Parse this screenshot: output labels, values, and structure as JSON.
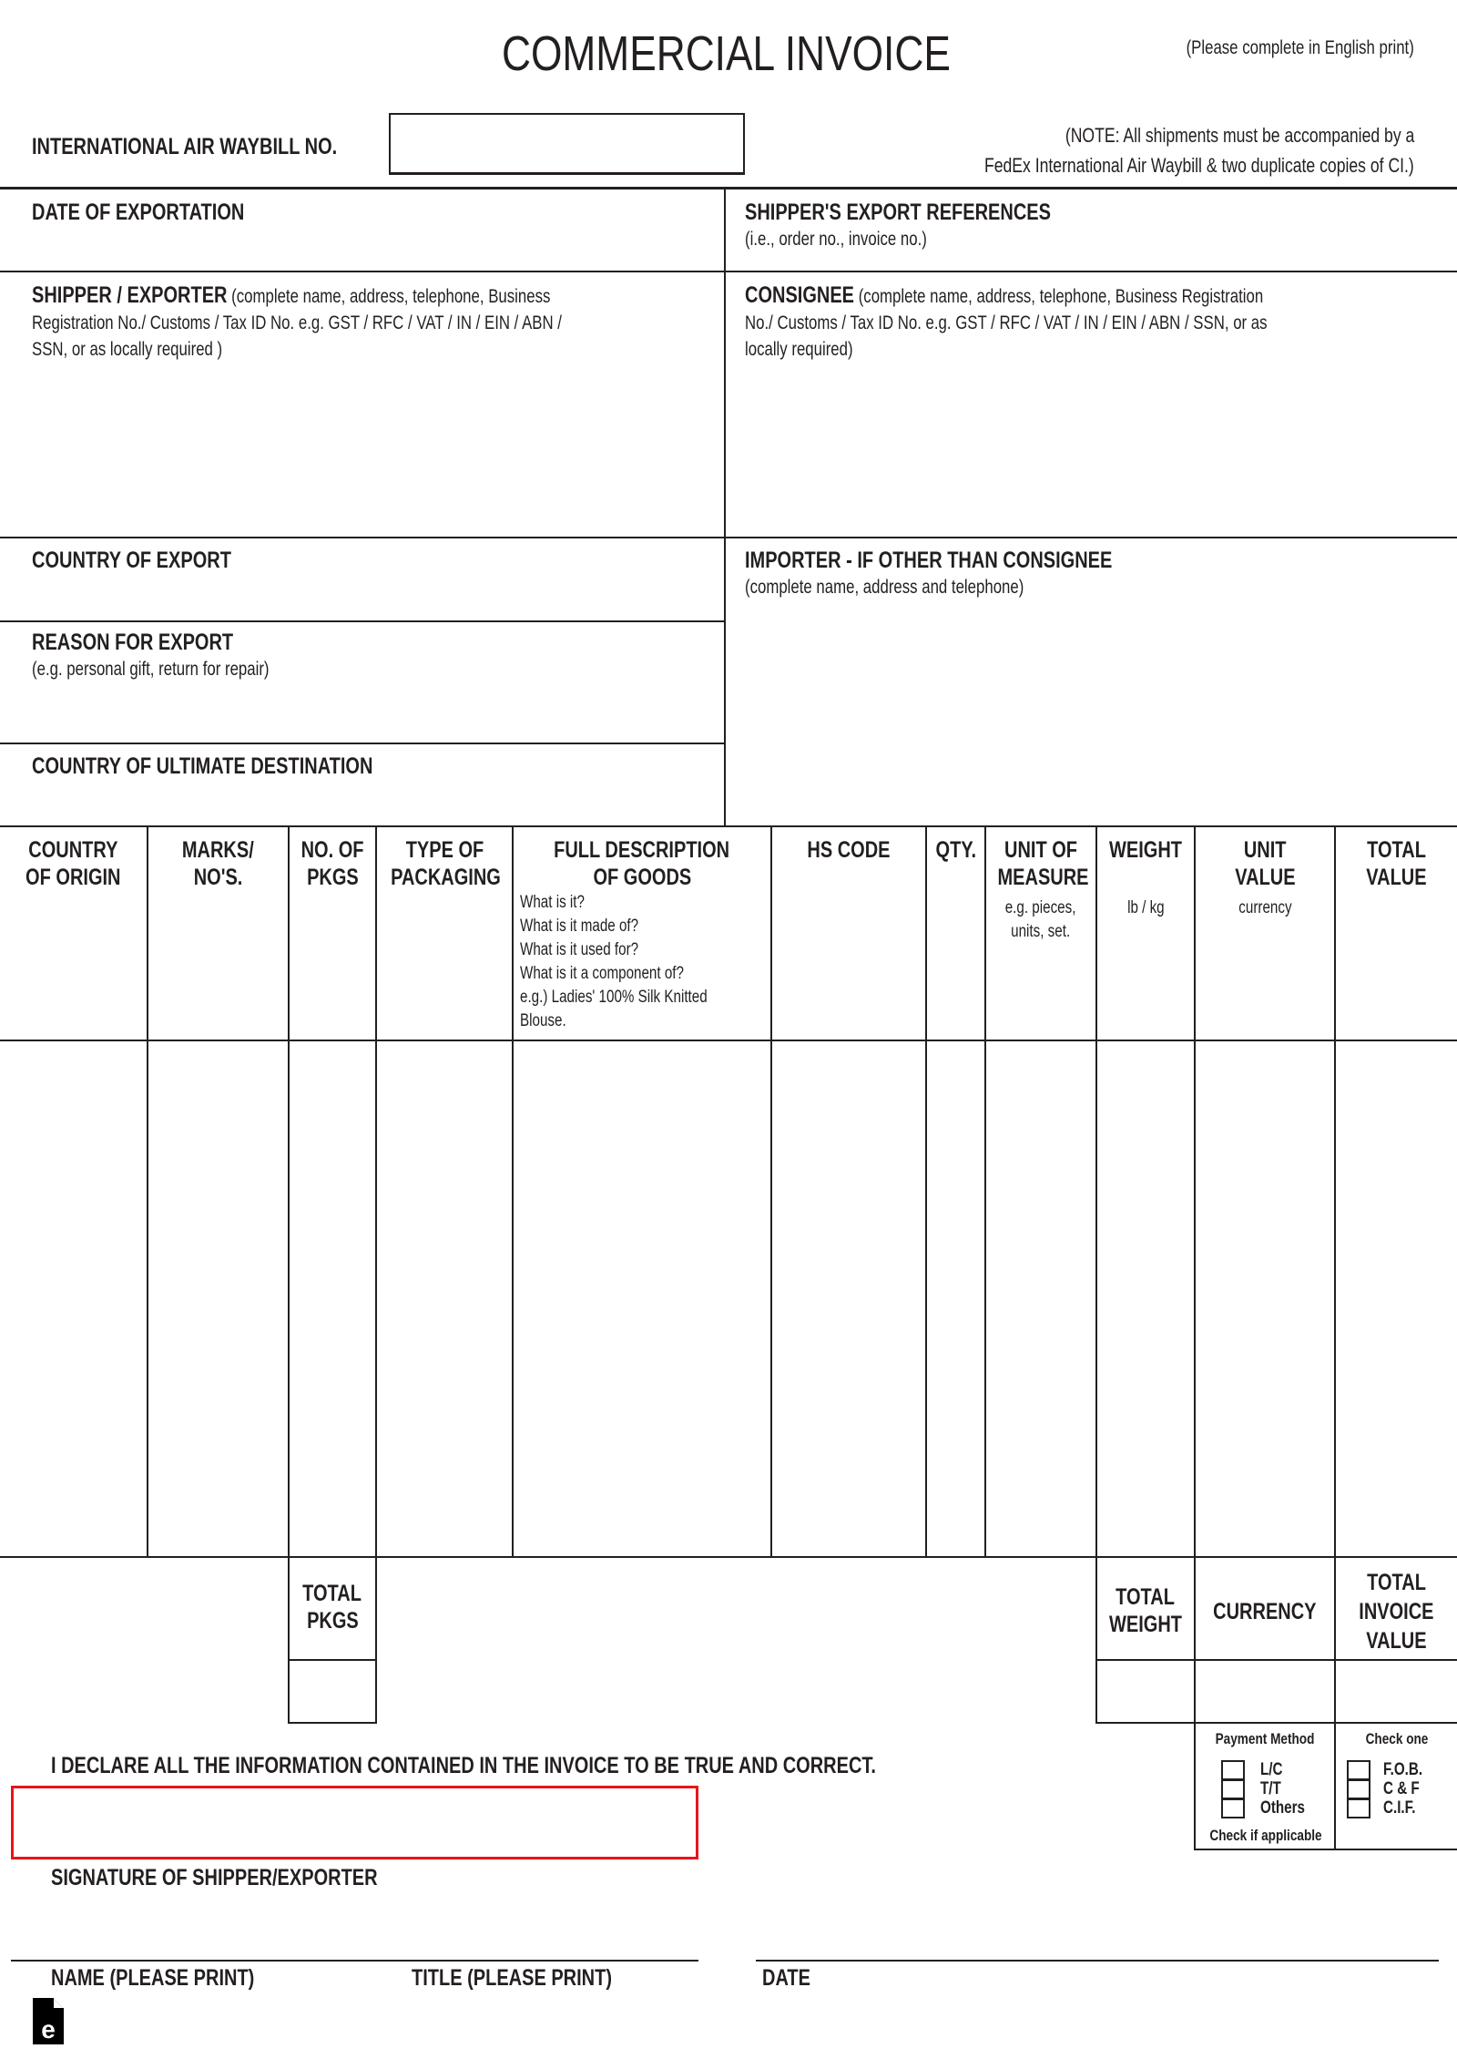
{
  "header": {
    "title": "COMMERCIAL INVOICE",
    "instruction": "(Please complete in English print)"
  },
  "waybill": {
    "label": "INTERNATIONAL AIR WAYBILL NO.",
    "value": "",
    "note_line1": "(NOTE: All shipments must be accompanied by a",
    "note_line2": "FedEx International Air Waybill & two duplicate copies of CI.)"
  },
  "date_of_exportation": {
    "label": "DATE OF EXPORTATION",
    "value": ""
  },
  "shipper_refs": {
    "label": "SHIPPER'S EXPORT REFERENCES",
    "hint": "(i.e., order no., invoice no.)",
    "value": ""
  },
  "shipper": {
    "label": "SHIPPER / EXPORTER",
    "hint_line1": "(complete name, address, telephone, Business",
    "hint_line2": "Registration No./ Customs / Tax ID No. e.g. GST / RFC / VAT / IN / EIN / ABN /",
    "hint_line3": "SSN, or as locally required )"
  },
  "consignee": {
    "label": "CONSIGNEE",
    "hint_line1": "(complete name, address, telephone, Business Registration",
    "hint_line2": "No./ Customs / Tax ID No. e.g. GST / RFC / VAT / IN / EIN / ABN / SSN, or as",
    "hint_line3": "locally required)"
  },
  "country_of_export": {
    "label": "COUNTRY OF EXPORT"
  },
  "importer": {
    "label": "IMPORTER - IF OTHER THAN CONSIGNEE",
    "hint": "(complete name, address and telephone)"
  },
  "reason": {
    "label": "REASON FOR EXPORT",
    "hint": "(e.g. personal gift, return for repair)"
  },
  "destination": {
    "label": "COUNTRY OF ULTIMATE DESTINATION"
  },
  "table": {
    "columns": [
      {
        "l1": "COUNTRY",
        "l2": "OF ORIGIN"
      },
      {
        "l1": "MARKS/",
        "l2": "NO'S."
      },
      {
        "l1": "NO. OF",
        "l2": "PKGS"
      },
      {
        "l1": "TYPE OF",
        "l2": "PACKAGING"
      },
      {
        "l1": "FULL DESCRIPTION",
        "l2": "OF GOODS",
        "hints": [
          "What is it?",
          "What is it made of?",
          "What is it used for?",
          "What is it a component of?",
          "e.g.) Ladies' 100% Silk Knitted",
          "Blouse."
        ]
      },
      {
        "l1": "HS CODE"
      },
      {
        "l1": "QTY."
      },
      {
        "l1": "UNIT OF",
        "l2": "MEASURE",
        "hint1": "e.g. pieces,",
        "hint2": "units, set."
      },
      {
        "l1": "WEIGHT",
        "hint1": "lb / kg"
      },
      {
        "l1": "UNIT",
        "l2": "VALUE",
        "hint1": "currency"
      },
      {
        "l1": "TOTAL",
        "l2": "VALUE"
      }
    ]
  },
  "totals": {
    "pkgs_l1": "TOTAL",
    "pkgs_l2": "PKGS",
    "weight_l1": "TOTAL",
    "weight_l2": "WEIGHT",
    "currency": "CURRENCY",
    "invoice_l1": "TOTAL",
    "invoice_l2": "INVOICE",
    "invoice_l3": "VALUE"
  },
  "payment": {
    "title": "Payment Method",
    "options": [
      "L/C",
      "T/T",
      "Others"
    ],
    "footer": "Check if applicable"
  },
  "terms": {
    "title": "Check one",
    "options": [
      "F.O.B.",
      "C & F",
      "C.I.F."
    ]
  },
  "declaration": {
    "text": "I DECLARE ALL THE INFORMATION CONTAINED IN THE INVOICE TO BE TRUE AND CORRECT.",
    "signature_label": "SIGNATURE OF SHIPPER/EXPORTER",
    "name_label": "NAME (PLEASE PRINT)",
    "title_label": "TITLE (PLEASE PRINT)",
    "date_label": "DATE"
  },
  "colors": {
    "text": "#231f20",
    "highlight": "#e8141c"
  },
  "logo": {
    "letter": "e"
  }
}
